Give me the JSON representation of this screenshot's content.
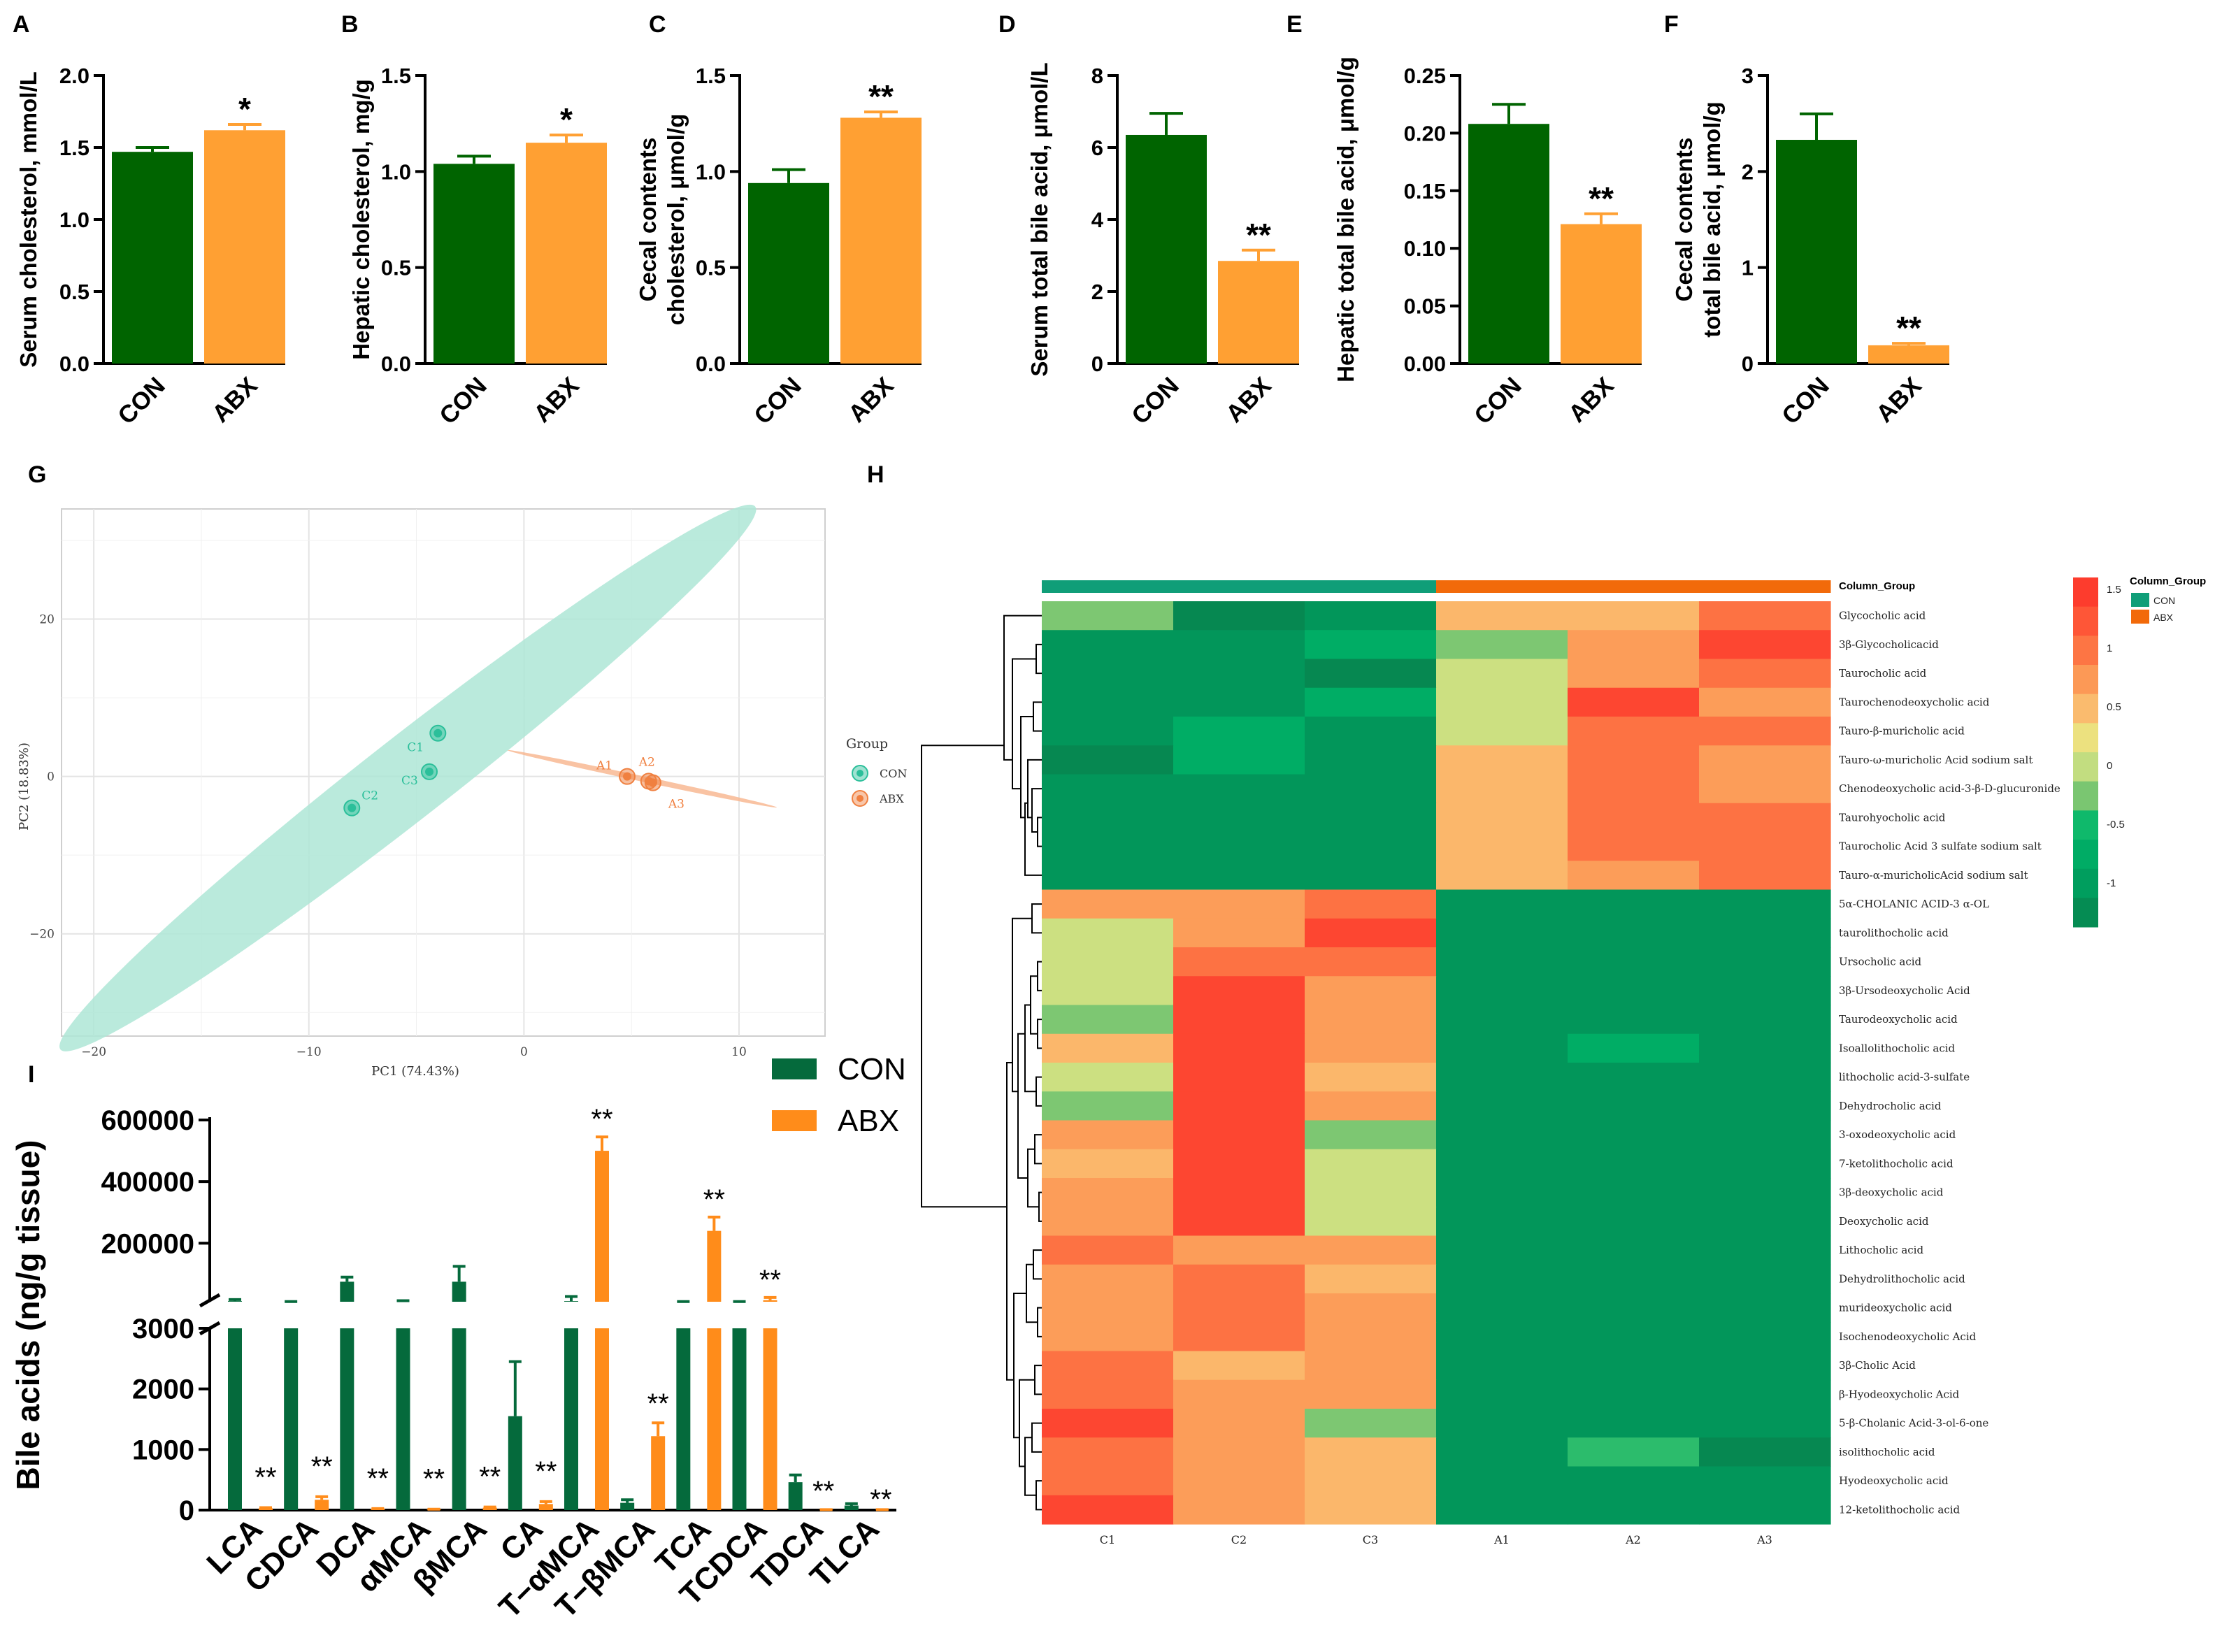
{
  "colors": {
    "con": "#006400",
    "abx": "#FFA033",
    "con_i": "#056A3C",
    "abx_i": "#FF8C1A",
    "pca_con": "#2BBF9A",
    "pca_abx": "#F08040",
    "ellipse_con": "#AEE6D6",
    "group_con": "#109E78",
    "group_abx": "#F26A0A"
  },
  "chart_data": [
    {
      "panel": "A",
      "type": "bar",
      "categories": [
        "CON",
        "ABX"
      ],
      "values": [
        1.47,
        1.62
      ],
      "errors": [
        0.03,
        0.04
      ],
      "ylabel": "Serum cholesterol, mmol/L",
      "ylim": [
        0,
        2.0
      ],
      "yticks": [
        "0.0",
        "0.5",
        "1.0",
        "1.5",
        "2.0"
      ],
      "sig": [
        "",
        "*"
      ]
    },
    {
      "panel": "B",
      "type": "bar",
      "categories": [
        "CON",
        "ABX"
      ],
      "values": [
        1.04,
        1.15
      ],
      "errors": [
        0.04,
        0.04
      ],
      "ylabel": "Hepatic cholesterol, mg/g",
      "ylim": [
        0,
        1.5
      ],
      "yticks": [
        "0.0",
        "0.5",
        "1.0",
        "1.5"
      ],
      "sig": [
        "",
        "*"
      ]
    },
    {
      "panel": "C",
      "type": "bar",
      "categories": [
        "CON",
        "ABX"
      ],
      "values": [
        0.94,
        1.28
      ],
      "errors": [
        0.07,
        0.03
      ],
      "ylabel": "Cecal contents|cholesterol, μmol/g",
      "ylim": [
        0,
        1.5
      ],
      "yticks": [
        "0.0",
        "0.5",
        "1.0",
        "1.5"
      ],
      "sig": [
        "",
        "**"
      ]
    },
    {
      "panel": "D",
      "type": "bar",
      "categories": [
        "CON",
        "ABX"
      ],
      "values": [
        6.35,
        2.85
      ],
      "errors": [
        0.6,
        0.3
      ],
      "ylabel": "Serum total bile acid, μmol/L",
      "ylim": [
        0,
        8
      ],
      "yticks": [
        "0",
        "2",
        "4",
        "6",
        "8"
      ],
      "sig": [
        "",
        "**"
      ]
    },
    {
      "panel": "E",
      "type": "bar",
      "categories": [
        "CON",
        "ABX"
      ],
      "values": [
        0.208,
        0.121
      ],
      "errors": [
        0.017,
        0.009
      ],
      "ylabel": "Hepatic total bile acid, μmol/g",
      "ylim": [
        0,
        0.25
      ],
      "yticks": [
        "0.00",
        "0.05",
        "0.10",
        "0.15",
        "0.20",
        "0.25"
      ],
      "sig": [
        "",
        "**"
      ]
    },
    {
      "panel": "F",
      "type": "bar",
      "categories": [
        "CON",
        "ABX"
      ],
      "values": [
        2.33,
        0.19
      ],
      "errors": [
        0.27,
        0.02
      ],
      "ylabel": "Cecal contents|total bile acid, μmol/g",
      "ylim": [
        0,
        3
      ],
      "yticks": [
        "0",
        "1",
        "2",
        "3"
      ],
      "sig": [
        "",
        "**"
      ]
    },
    {
      "panel": "G",
      "type": "scatter",
      "xlabel": "PC1 (74.43%)",
      "ylabel": "PC2 (18.83%)",
      "xlim": [
        -21.5,
        14
      ],
      "ylim": [
        -33,
        34
      ],
      "xticks": [
        -20,
        -10,
        0,
        10
      ],
      "yticks": [
        -20,
        0,
        20
      ],
      "points": [
        {
          "label": "C1",
          "group": "CON",
          "x": -4,
          "y": 5.5
        },
        {
          "label": "C3",
          "group": "CON",
          "x": -4.4,
          "y": 0.6
        },
        {
          "label": "C2",
          "group": "CON",
          "x": -8,
          "y": -4
        },
        {
          "label": "A1",
          "group": "ABX",
          "x": 4.8,
          "y": 0
        },
        {
          "label": "A2",
          "group": "ABX",
          "x": 5.8,
          "y": -0.6
        },
        {
          "label": "A3",
          "group": "ABX",
          "x": 6,
          "y": -0.8
        }
      ],
      "ellipses": [
        {
          "group": "CON",
          "cx": -5.4,
          "cy": -0.2,
          "rx": 20.5,
          "ry": 5.2,
          "angle_deg": 38
        },
        {
          "group": "ABX",
          "cx": 5.5,
          "cy": -0.3,
          "rx": 6.4,
          "ry": 0.35,
          "angle_deg": -12
        }
      ],
      "legend_title": "Group",
      "legend": [
        "CON",
        "ABX"
      ]
    },
    {
      "panel": "H",
      "type": "heatmap",
      "columns": [
        "C1",
        "C2",
        "C3",
        "A1",
        "A2",
        "A3"
      ],
      "column_groups": [
        "CON",
        "CON",
        "CON",
        "ABX",
        "ABX",
        "ABX"
      ],
      "legend_title": "Column_Group",
      "colorbar_ticks": [
        "1.5",
        "1",
        "0.5",
        "0",
        "-0.5",
        "-1"
      ],
      "rows": [
        "Glycocholic acid",
        "3β-Glycocholicacid",
        "Taurocholic acid",
        "Taurochenodeoxycholic acid",
        "Tauro-β-muricholic acid",
        "Tauro-ω-muricholic Acid sodium salt",
        "Chenodeoxycholic acid-3-β-D-glucuronide",
        "Taurohyocholic acid",
        "Taurocholic Acid 3 sulfate sodium salt",
        "Tauro-α-muricholicAcid sodium salt",
        "5α-CHOLANIC ACID-3 α-OL",
        "taurolithocholic acid",
        "Ursocholic acid",
        "3β-Ursodeoxycholic Acid",
        "Taurodeoxycholic acid",
        "Isoallolithocholic acid",
        "lithocholic acid-3-sulfate",
        "Dehydrocholic acid",
        "3-oxodeoxycholic acid",
        "7-ketolithocholic acid",
        "3β-deoxycholic acid",
        "Deoxycholic acid",
        "Lithocholic acid",
        "Dehydrolithocholic acid",
        "murideoxycholic acid",
        "Isochenodeoxycholic Acid",
        "3β-Cholic Acid",
        "β-Hyodeoxycholic Acid",
        "5-β-Cholanic Acid-3-ol-6-one",
        "isolithocholic acid",
        "Hyodeoxycholic acid",
        "12-ketolithocholic acid"
      ],
      "values": [
        [
          -0.2,
          -1.3,
          -1.1,
          0.6,
          0.6,
          1.1
        ],
        [
          -1.1,
          -1.1,
          -0.7,
          -0.2,
          0.8,
          1.5
        ],
        [
          -1.1,
          -1.1,
          -1.3,
          0.1,
          0.8,
          1.1
        ],
        [
          -1.1,
          -1.1,
          -0.7,
          0.1,
          1.5,
          0.8
        ],
        [
          -1.1,
          -0.7,
          -1.1,
          0.1,
          1.1,
          1.1
        ],
        [
          -1.3,
          -0.7,
          -1.1,
          0.6,
          1.1,
          0.8
        ],
        [
          -1.1,
          -1.1,
          -1.1,
          0.6,
          1.1,
          0.8
        ],
        [
          -1.1,
          -1.1,
          -1.1,
          0.6,
          1.1,
          1.1
        ],
        [
          -1.1,
          -1.1,
          -1.1,
          0.6,
          1.1,
          1.1
        ],
        [
          -1.1,
          -1.1,
          -1.1,
          0.6,
          0.8,
          1.1
        ],
        [
          0.8,
          0.8,
          1.1,
          -1.1,
          -1.1,
          -1.1
        ],
        [
          0.1,
          0.8,
          1.5,
          -1.1,
          -1.1,
          -1.1
        ],
        [
          0.1,
          1.1,
          1.1,
          -1.1,
          -1.1,
          -1.1
        ],
        [
          0.1,
          1.5,
          0.8,
          -1.1,
          -1.1,
          -1.1
        ],
        [
          -0.2,
          1.5,
          0.8,
          -1.1,
          -1.1,
          -1.1
        ],
        [
          0.6,
          1.5,
          0.8,
          -1.1,
          -0.7,
          -1.1
        ],
        [
          0.1,
          1.5,
          0.6,
          -1.1,
          -1.1,
          -1.1
        ],
        [
          -0.2,
          1.5,
          0.8,
          -1.1,
          -1.1,
          -1.1
        ],
        [
          0.8,
          1.5,
          -0.2,
          -1.1,
          -1.1,
          -1.1
        ],
        [
          0.6,
          1.5,
          0.1,
          -1.1,
          -1.1,
          -1.1
        ],
        [
          0.8,
          1.5,
          0.1,
          -1.1,
          -1.1,
          -1.1
        ],
        [
          0.8,
          1.5,
          0.1,
          -1.1,
          -1.1,
          -1.1
        ],
        [
          1.1,
          0.8,
          0.8,
          -1.1,
          -1.1,
          -1.1
        ],
        [
          0.8,
          1.1,
          0.6,
          -1.1,
          -1.1,
          -1.1
        ],
        [
          0.8,
          1.1,
          0.8,
          -1.1,
          -1.1,
          -1.1
        ],
        [
          0.8,
          1.1,
          0.8,
          -1.1,
          -1.1,
          -1.1
        ],
        [
          1.1,
          0.6,
          0.8,
          -1.1,
          -1.1,
          -1.1
        ],
        [
          1.1,
          0.8,
          0.8,
          -1.1,
          -1.1,
          -1.1
        ],
        [
          1.5,
          0.8,
          -0.2,
          -1.1,
          -1.1,
          -1.1
        ],
        [
          1.1,
          0.8,
          0.6,
          -1.1,
          -0.4,
          -1.3
        ],
        [
          1.1,
          0.8,
          0.6,
          -1.1,
          -1.1,
          -1.1
        ],
        [
          1.5,
          0.8,
          0.6,
          -1.1,
          -1.1,
          -1.1
        ]
      ]
    },
    {
      "panel": "I",
      "type": "bar",
      "ylabel": "Bile acids (ng/g tissue)",
      "categories": [
        "LCA",
        "CDCA",
        "DCA",
        "αMCA",
        "βMCA",
        "CA",
        "T−αMCA",
        "T−βMCA",
        "TCA",
        "TCDCA",
        "TDCA",
        "TLCA"
      ],
      "series": [
        {
          "name": "CON",
          "values": [
            12000,
            4500,
            75000,
            8500,
            75000,
            1550,
            12000,
            120,
            6000,
            4500,
            460,
            75
          ],
          "errors": [
            5000,
            2500,
            15000,
            5000,
            50000,
            900,
            15000,
            50,
            3000,
            2000,
            120,
            30
          ]
        },
        {
          "name": "ABX",
          "values": [
            30,
            170,
            20,
            10,
            40,
            100,
            500000,
            1220,
            240000,
            15000,
            5,
            5
          ],
          "errors": [
            10,
            50,
            5,
            5,
            10,
            40,
            45000,
            220,
            45000,
            9000,
            2,
            2
          ]
        }
      ],
      "sig": [
        "**",
        "**",
        "**",
        "**",
        "**",
        "**",
        "**",
        "**",
        "**",
        "**",
        "**",
        "**"
      ],
      "y_break": [
        3000,
        10000
      ],
      "yticks_low": [
        "0",
        "1000",
        "2000",
        "3000"
      ],
      "yticks_high": [
        "200000",
        "400000",
        "600000"
      ]
    }
  ],
  "panel_labels": [
    "A",
    "B",
    "C",
    "D",
    "E",
    "F",
    "G",
    "H",
    "I"
  ]
}
